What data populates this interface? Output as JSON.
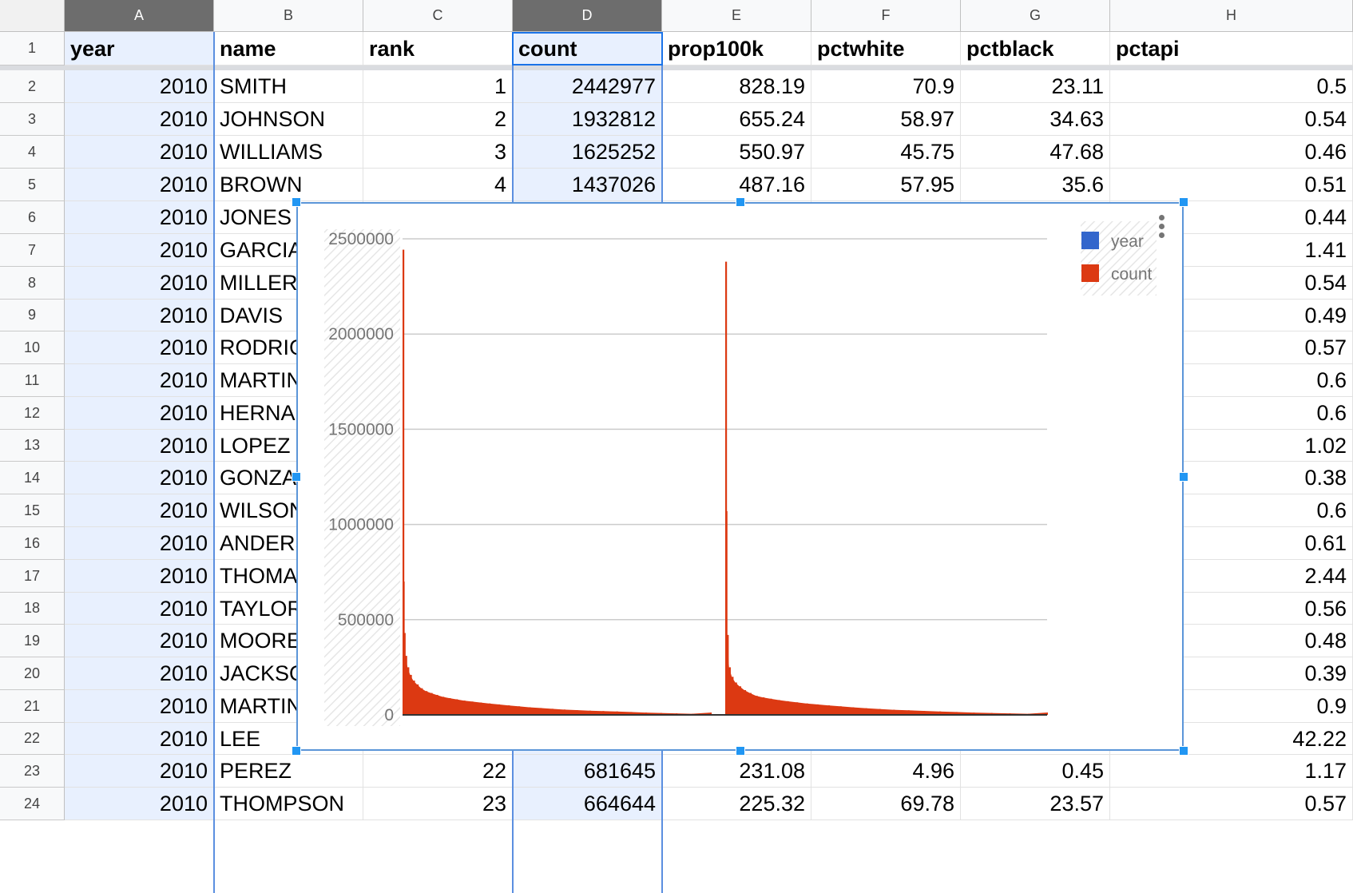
{
  "sheet": {
    "columns": [
      "A",
      "B",
      "C",
      "D",
      "E",
      "F",
      "G",
      "H"
    ],
    "selected_column": "D",
    "header_row": [
      "year",
      "name",
      "rank",
      "count",
      "prop100k",
      "pctwhite",
      "pctblack",
      "pctapi"
    ],
    "rows": [
      {
        "n": "1"
      },
      {
        "n": "2",
        "cells": [
          "2010",
          "SMITH",
          "1",
          "2442977",
          "828.19",
          "70.9",
          "23.11",
          "0.5"
        ]
      },
      {
        "n": "3",
        "cells": [
          "2010",
          "JOHNSON",
          "2",
          "1932812",
          "655.24",
          "58.97",
          "34.63",
          "0.54"
        ]
      },
      {
        "n": "4",
        "cells": [
          "2010",
          "WILLIAMS",
          "3",
          "1625252",
          "550.97",
          "45.75",
          "47.68",
          "0.46"
        ]
      },
      {
        "n": "5",
        "cells": [
          "2010",
          "BROWN",
          "4",
          "1437026",
          "487.16",
          "57.95",
          "35.6",
          "0.51"
        ]
      },
      {
        "n": "6",
        "cells": [
          "2010",
          "JONES",
          "",
          "",
          "",
          "",
          "",
          "0.44"
        ]
      },
      {
        "n": "7",
        "cells": [
          "2010",
          "GARCIA",
          "",
          "",
          "",
          "",
          "",
          "1.41"
        ]
      },
      {
        "n": "8",
        "cells": [
          "2010",
          "MILLER",
          "",
          "",
          "",
          "",
          "",
          "0.54"
        ]
      },
      {
        "n": "9",
        "cells": [
          "2010",
          "DAVIS",
          "",
          "",
          "",
          "",
          "",
          "0.49"
        ]
      },
      {
        "n": "10",
        "cells": [
          "2010",
          "RODRIGUEZ",
          "",
          "",
          "",
          "",
          "",
          "0.57"
        ]
      },
      {
        "n": "11",
        "cells": [
          "2010",
          "MARTINEZ",
          "",
          "",
          "",
          "",
          "",
          "0.6"
        ]
      },
      {
        "n": "12",
        "cells": [
          "2010",
          "HERNANDEZ",
          "",
          "",
          "",
          "",
          "",
          "0.6"
        ]
      },
      {
        "n": "13",
        "cells": [
          "2010",
          "LOPEZ",
          "",
          "",
          "",
          "",
          "",
          "1.02"
        ]
      },
      {
        "n": "14",
        "cells": [
          "2010",
          "GONZALEZ",
          "",
          "",
          "",
          "",
          "",
          "0.38"
        ]
      },
      {
        "n": "15",
        "cells": [
          "2010",
          "WILSON",
          "",
          "",
          "",
          "",
          "",
          "0.6"
        ]
      },
      {
        "n": "16",
        "cells": [
          "2010",
          "ANDERSON",
          "",
          "",
          "",
          "",
          "",
          "0.61"
        ]
      },
      {
        "n": "17",
        "cells": [
          "2010",
          "THOMAS",
          "",
          "",
          "",
          "",
          "",
          "2.44"
        ]
      },
      {
        "n": "18",
        "cells": [
          "2010",
          "TAYLOR",
          "",
          "",
          "",
          "",
          "",
          "0.56"
        ]
      },
      {
        "n": "19",
        "cells": [
          "2010",
          "MOORE",
          "",
          "",
          "",
          "",
          "",
          "0.48"
        ]
      },
      {
        "n": "20",
        "cells": [
          "2010",
          "JACKSON",
          "",
          "",
          "",
          "",
          "",
          "0.39"
        ]
      },
      {
        "n": "21",
        "cells": [
          "2010",
          "MARTIN",
          "",
          "",
          "",
          "",
          "",
          "0.9"
        ]
      },
      {
        "n": "22",
        "cells": [
          "2010",
          "LEE",
          "",
          "",
          "",
          "",
          "",
          "42.22"
        ]
      },
      {
        "n": "23",
        "cells": [
          "2010",
          "PEREZ",
          "22",
          "681645",
          "231.08",
          "4.96",
          "0.45",
          "1.17"
        ]
      },
      {
        "n": "24",
        "cells": [
          "2010",
          "THOMPSON",
          "23",
          "664644",
          "225.32",
          "69.78",
          "23.57",
          "0.57"
        ]
      }
    ]
  },
  "chart_data": {
    "type": "bar",
    "title": "",
    "xlabel": "",
    "ylabel": "",
    "ylim": [
      0,
      2500000
    ],
    "yticks": [
      "0",
      "500000",
      "1000000",
      "1500000",
      "2000000",
      "2500000"
    ],
    "grid": true,
    "legend_position": "top-right",
    "series": [
      {
        "name": "year",
        "color": "#3366cc",
        "values": []
      },
      {
        "name": "count",
        "color": "#dc3912",
        "values": [
          2442977,
          700000,
          430000,
          310000,
          250000,
          210000,
          180000,
          160000,
          140000,
          125000,
          115000,
          105000,
          95000,
          88000,
          82000,
          75000,
          70000,
          65000,
          60000,
          55000,
          50000,
          45000,
          40000,
          36000,
          32000,
          28000,
          25000,
          22000,
          20000,
          18000,
          15000,
          12000,
          10000,
          8000,
          6000,
          2380000,
          1070000,
          420000,
          250000,
          200000,
          170000,
          150000,
          130000,
          115000,
          100000,
          92000,
          85000,
          78000,
          72000,
          66000,
          60000,
          55000,
          50000,
          45000,
          40000,
          35000,
          31000,
          27000,
          24000,
          21000,
          18000,
          15000,
          12000,
          10000,
          8000,
          6000
        ]
      }
    ]
  },
  "chart_menu_icon": "more-vert-icon"
}
